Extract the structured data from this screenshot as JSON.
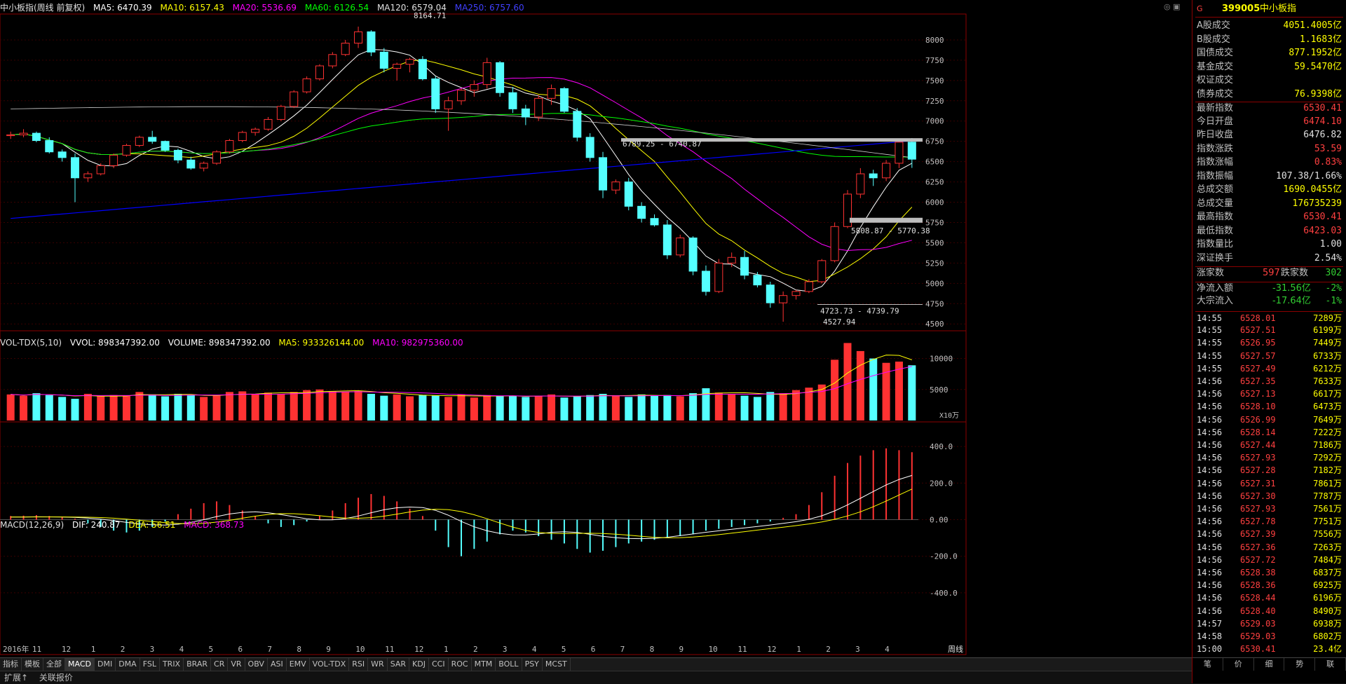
{
  "header": {
    "title": "中小板指(周线 前复权)",
    "ma5": "MA5: 6470.39",
    "ma10": "MA10: 6157.43",
    "ma20": "MA20: 5536.69",
    "ma60": "MA60: 6126.54",
    "ma120": "MA120: 6579.04",
    "ma250": "MA250: 6757.60"
  },
  "vol_header": {
    "name": "VOL-TDX(5,10)",
    "vvol": "VVOL: 898347392.00",
    "volume": "VOLUME: 898347392.00",
    "ma5": "MA5: 933326144.00",
    "ma10": "MA10: 982975360.00"
  },
  "macd_header": {
    "name": "MACD(12,26,9)",
    "dif": "DIF: 240.87",
    "dea": "DEA: 56.51",
    "macd": "MACD: 368.73"
  },
  "annotations": {
    "high": "8164.71",
    "low": "4527.94",
    "gap1": "6789.25 - 6740.87",
    "gap2": "5808.87 - 5770.38",
    "gap3": "4723.73 - 4739.79",
    "vol_unit": "X10万",
    "week_label": "周线"
  },
  "price_axis": [
    "8000",
    "7750",
    "7500",
    "7250",
    "7000",
    "6750",
    "6500",
    "6250",
    "6000",
    "5750",
    "5500",
    "5250",
    "5000",
    "4750",
    "4500"
  ],
  "vol_axis": [
    "10000",
    "5000"
  ],
  "macd_axis": [
    "400.0",
    "200.0",
    "0.00",
    "-200.0",
    "-400.0"
  ],
  "x_axis": [
    "2016年",
    "11",
    "12",
    "1",
    "2",
    "3",
    "4",
    "5",
    "6",
    "7",
    "8",
    "9",
    "10",
    "11",
    "12",
    "1",
    "2",
    "3",
    "4",
    "5",
    "6",
    "7",
    "8",
    "9",
    "10",
    "11",
    "12",
    "1",
    "2",
    "3",
    "4"
  ],
  "colors": {
    "up": "#ff3232",
    "down": "#54ffff",
    "ma5": "#ffffff",
    "ma10": "#ffff00",
    "ma20": "#ff00ff",
    "ma60": "#00ff00",
    "ma250": "#0000ff",
    "border": "#8b0000"
  },
  "chart_data": {
    "type": "candlestick",
    "title": "中小板指(周线 前复权)",
    "ylim": [
      4450,
      8250
    ],
    "ohlc_sampled": [
      [
        6820,
        6870,
        6780,
        6830
      ],
      [
        6830,
        6900,
        6800,
        6850
      ],
      [
        6850,
        6870,
        6740,
        6760
      ],
      [
        6760,
        6800,
        6600,
        6620
      ],
      [
        6620,
        6650,
        6500,
        6550
      ],
      [
        6550,
        6600,
        6000,
        6300
      ],
      [
        6300,
        6380,
        6250,
        6350
      ],
      [
        6350,
        6480,
        6330,
        6450
      ],
      [
        6450,
        6600,
        6420,
        6580
      ],
      [
        6580,
        6720,
        6560,
        6700
      ],
      [
        6700,
        6820,
        6680,
        6800
      ],
      [
        6800,
        6880,
        6720,
        6750
      ],
      [
        6750,
        6760,
        6620,
        6640
      ],
      [
        6640,
        6660,
        6480,
        6520
      ],
      [
        6520,
        6560,
        6400,
        6420
      ],
      [
        6420,
        6500,
        6380,
        6480
      ],
      [
        6480,
        6640,
        6460,
        6620
      ],
      [
        6620,
        6780,
        6600,
        6760
      ],
      [
        6760,
        6880,
        6740,
        6860
      ],
      [
        6860,
        6920,
        6820,
        6900
      ],
      [
        6900,
        7050,
        6880,
        7020
      ],
      [
        7020,
        7200,
        7000,
        7180
      ],
      [
        7180,
        7380,
        7160,
        7360
      ],
      [
        7360,
        7550,
        7340,
        7520
      ],
      [
        7520,
        7700,
        7500,
        7680
      ],
      [
        7680,
        7850,
        7650,
        7820
      ],
      [
        7820,
        8000,
        7800,
        7960
      ],
      [
        7960,
        8164,
        7900,
        8100
      ],
      [
        8100,
        8120,
        7800,
        7850
      ],
      [
        7850,
        7900,
        7600,
        7650
      ],
      [
        7650,
        7720,
        7500,
        7700
      ],
      [
        7700,
        7780,
        7600,
        7760
      ],
      [
        7760,
        7800,
        7500,
        7520
      ],
      [
        7520,
        7550,
        7100,
        7150
      ],
      [
        7150,
        7300,
        6880,
        7250
      ],
      [
        7250,
        7400,
        7200,
        7380
      ],
      [
        7380,
        7500,
        7300,
        7450
      ],
      [
        7450,
        7780,
        7400,
        7720
      ],
      [
        7720,
        7740,
        7300,
        7350
      ],
      [
        7350,
        7420,
        7100,
        7150
      ],
      [
        7150,
        7200,
        6950,
        7050
      ],
      [
        7050,
        7320,
        7000,
        7280
      ],
      [
        7280,
        7450,
        7200,
        7400
      ],
      [
        7400,
        7420,
        7100,
        7120
      ],
      [
        7120,
        7160,
        6750,
        6800
      ],
      [
        6800,
        6850,
        6500,
        6550
      ],
      [
        6550,
        6620,
        6050,
        6150
      ],
      [
        6150,
        6280,
        6100,
        6250
      ],
      [
        6250,
        6300,
        5900,
        5950
      ],
      [
        5950,
        6000,
        5750,
        5800
      ],
      [
        5800,
        5850,
        5700,
        5720
      ],
      [
        5720,
        5780,
        5300,
        5350
      ],
      [
        5350,
        5600,
        5320,
        5560
      ],
      [
        5560,
        5580,
        5100,
        5150
      ],
      [
        5150,
        5220,
        4850,
        4900
      ],
      [
        4900,
        5300,
        4880,
        5250
      ],
      [
        5250,
        5380,
        5200,
        5320
      ],
      [
        5320,
        5400,
        5050,
        5100
      ],
      [
        5100,
        5140,
        4950,
        4980
      ],
      [
        4980,
        5020,
        4700,
        4760
      ],
      [
        4760,
        4900,
        4527,
        4850
      ],
      [
        4850,
        4920,
        4800,
        4900
      ],
      [
        4900,
        5050,
        4880,
        5020
      ],
      [
        5020,
        5300,
        5000,
        5280
      ],
      [
        5280,
        5750,
        5260,
        5700
      ],
      [
        5700,
        6150,
        5680,
        6100
      ],
      [
        6100,
        6420,
        6050,
        6350
      ],
      [
        6350,
        6400,
        6200,
        6300
      ],
      [
        6300,
        6520,
        6260,
        6480
      ],
      [
        6480,
        6780,
        6420,
        6740
      ],
      [
        6740,
        6790,
        6423,
        6530
      ]
    ],
    "volume_sampled": [
      4200,
      4000,
      4400,
      4100,
      3800,
      3500,
      4300,
      3900,
      4100,
      4000,
      4600,
      4200,
      3900,
      4300,
      4100,
      3800,
      4000,
      4600,
      4700,
      4200,
      4500,
      4300,
      4600,
      4900,
      5000,
      4700,
      4600,
      4800,
      4300,
      4000,
      4200,
      3900,
      4100,
      4000,
      3800,
      4200,
      3700,
      4100,
      3900,
      4000,
      3800,
      3900,
      4200,
      3700,
      3900,
      4100,
      4300,
      4000,
      3800,
      4200,
      4000,
      4100,
      3900,
      4400,
      5200,
      4500,
      4300,
      4000,
      3800,
      4600,
      4400,
      4900,
      5300,
      5800,
      9800,
      12500,
      11200,
      10000,
      9300,
      9500,
      8900
    ],
    "macd_sampled": [
      20,
      22,
      25,
      20,
      15,
      5,
      -20,
      -40,
      -60,
      -70,
      -60,
      -40,
      -10,
      30,
      60,
      90,
      100,
      80,
      50,
      20,
      -20,
      -40,
      -30,
      -10,
      20,
      50,
      90,
      120,
      140,
      130,
      100,
      60,
      20,
      -60,
      -150,
      -200,
      -160,
      -120,
      -80,
      -60,
      -70,
      -90,
      -110,
      -130,
      -160,
      -180,
      -170,
      -150,
      -130,
      -120,
      -110,
      -100,
      -90,
      -80,
      -60,
      -50,
      -40,
      -30,
      -20,
      -10,
      10,
      30,
      80,
      150,
      240,
      310,
      350,
      380,
      390,
      380,
      368.73
    ]
  },
  "side": {
    "code": "399005",
    "name": "中小板指",
    "rows": [
      {
        "label": "A股成交",
        "value": "4051.4005亿",
        "cls": "yellow"
      },
      {
        "label": "B股成交",
        "value": "1.1683亿",
        "cls": "yellow"
      },
      {
        "label": "国债成交",
        "value": "877.1952亿",
        "cls": "yellow"
      },
      {
        "label": "基金成交",
        "value": "59.5470亿",
        "cls": "yellow"
      },
      {
        "label": "权证成交",
        "value": "",
        "cls": "yellow"
      },
      {
        "label": "债券成交",
        "value": "76.9398亿",
        "cls": "yellow"
      },
      {
        "label": "最新指数",
        "value": "6530.41",
        "cls": "red"
      },
      {
        "label": "今日开盘",
        "value": "6474.10",
        "cls": "red"
      },
      {
        "label": "昨日收盘",
        "value": "6476.82",
        "cls": "white"
      },
      {
        "label": "指数涨跌",
        "value": "53.59",
        "cls": "red"
      },
      {
        "label": "指数涨幅",
        "value": "0.83%",
        "cls": "red"
      },
      {
        "label": "指数振幅",
        "value": "107.38/1.66%",
        "cls": "white"
      },
      {
        "label": "总成交额",
        "value": "1690.0455亿",
        "cls": "yellow"
      },
      {
        "label": "总成交量",
        "value": "176735239",
        "cls": "yellow"
      },
      {
        "label": "最高指数",
        "value": "6530.41",
        "cls": "red"
      },
      {
        "label": "最低指数",
        "value": "6423.03",
        "cls": "red"
      },
      {
        "label": "指数量比",
        "value": "1.00",
        "cls": "white"
      },
      {
        "label": "深证换手",
        "value": "2.54%",
        "cls": "white"
      }
    ],
    "rise_label": "涨家数",
    "rise": "597",
    "fall_label": "跌家数",
    "fall": "302",
    "flow": [
      {
        "label": "净流入额",
        "value": "-31.56亿",
        "pct": "-2%"
      },
      {
        "label": "大宗流入",
        "value": "-17.64亿",
        "pct": "-1%"
      }
    ],
    "ticks": [
      [
        "14:55",
        "6528.01",
        "7289万"
      ],
      [
        "14:55",
        "6527.51",
        "6199万"
      ],
      [
        "14:55",
        "6526.95",
        "7449万"
      ],
      [
        "14:55",
        "6527.57",
        "6733万"
      ],
      [
        "14:55",
        "6527.49",
        "6212万"
      ],
      [
        "14:56",
        "6527.35",
        "7633万"
      ],
      [
        "14:56",
        "6527.13",
        "6617万"
      ],
      [
        "14:56",
        "6528.10",
        "6473万"
      ],
      [
        "14:56",
        "6526.99",
        "7649万"
      ],
      [
        "14:56",
        "6528.14",
        "7222万"
      ],
      [
        "14:56",
        "6527.44",
        "7186万"
      ],
      [
        "14:56",
        "6527.93",
        "7292万"
      ],
      [
        "14:56",
        "6527.28",
        "7182万"
      ],
      [
        "14:56",
        "6527.31",
        "7861万"
      ],
      [
        "14:56",
        "6527.30",
        "7787万"
      ],
      [
        "14:56",
        "6527.93",
        "7561万"
      ],
      [
        "14:56",
        "6527.78",
        "7751万"
      ],
      [
        "14:56",
        "6527.39",
        "7556万"
      ],
      [
        "14:56",
        "6527.36",
        "7263万"
      ],
      [
        "14:56",
        "6527.72",
        "7484万"
      ],
      [
        "14:56",
        "6528.38",
        "6837万"
      ],
      [
        "14:56",
        "6528.36",
        "6925万"
      ],
      [
        "14:56",
        "6528.44",
        "6196万"
      ],
      [
        "14:56",
        "6528.40",
        "8490万"
      ],
      [
        "14:57",
        "6529.03",
        "6938万"
      ],
      [
        "14:58",
        "6529.03",
        "6802万"
      ],
      [
        "15:00",
        "6530.41",
        "23.4亿"
      ]
    ],
    "tabs": [
      "笔",
      "价",
      "细",
      "势",
      "联"
    ]
  },
  "bottom_tabs": [
    "指标",
    "模板",
    "全部",
    "MACD",
    "DMI",
    "DMA",
    "FSL",
    "TRIX",
    "BRAR",
    "CR",
    "VR",
    "OBV",
    "ASI",
    "EMV",
    "VOL-TDX",
    "RSI",
    "WR",
    "SAR",
    "KDJ",
    "CCI",
    "ROC",
    "MTM",
    "BOLL",
    "PSY",
    "MCST"
  ],
  "status": {
    "expand": "扩展↑",
    "report": "关联报价"
  }
}
